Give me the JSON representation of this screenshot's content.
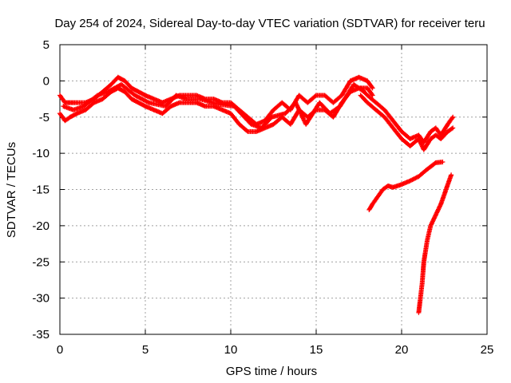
{
  "chart_data": {
    "type": "scatter",
    "title": "Day 254 of 2024, Sidereal Day-to-day VTEC variation (SDTVAR) for receiver teru",
    "xlabel": "GPS time / hours",
    "ylabel": "SDTVAR / TECUs",
    "xlim": [
      0,
      25
    ],
    "ylim": [
      -35,
      5
    ],
    "xticks": [
      0,
      5,
      10,
      15,
      20,
      25
    ],
    "yticks": [
      5,
      0,
      -5,
      -10,
      -15,
      -20,
      -25,
      -30,
      -35
    ],
    "grid": true,
    "marker": "+",
    "marker_color": "#ff0000",
    "series": [
      {
        "name": "main-trace-upper",
        "x": [
          0,
          0.3,
          0.6,
          1,
          1.5,
          2,
          2.5,
          3,
          3.4,
          3.8,
          4.2,
          4.6,
          5,
          5.5,
          6,
          6.5,
          7,
          7.5,
          8,
          8.5,
          9,
          9.5,
          10,
          10.5,
          11,
          11.5,
          12,
          12.5,
          13,
          13.5,
          14,
          14.5,
          15,
          15.5,
          16,
          16.5,
          17,
          17.5,
          18,
          18.3
        ],
        "y": [
          -2,
          -3,
          -3,
          -3,
          -3,
          -2.5,
          -1.5,
          -0.5,
          0.5,
          0,
          -1,
          -1.5,
          -2,
          -2.5,
          -3,
          -2.5,
          -2,
          -2,
          -2,
          -2.5,
          -2.5,
          -3,
          -3,
          -4,
          -5,
          -6,
          -5.5,
          -4,
          -3,
          -4,
          -2,
          -3,
          -2,
          -2,
          -3,
          -2,
          0,
          0.5,
          0,
          -1
        ]
      },
      {
        "name": "main-trace-lower",
        "x": [
          0,
          0.3,
          0.6,
          1,
          1.5,
          2,
          2.5,
          3,
          3.4,
          3.8,
          4.2,
          4.6,
          5,
          5.5,
          6,
          6.5,
          7,
          7.5,
          8,
          8.5,
          9,
          9.5,
          10,
          10.5,
          11,
          11.5,
          12,
          12.5,
          13,
          13.5,
          14,
          14.5,
          15,
          15.5,
          16,
          16.5,
          17,
          17.5,
          18,
          18.3
        ],
        "y": [
          -4.5,
          -5.5,
          -5,
          -4.5,
          -4,
          -3,
          -2.5,
          -1.5,
          -1,
          -1.5,
          -2.5,
          -3,
          -3.5,
          -4,
          -4.5,
          -3.5,
          -3,
          -3,
          -3,
          -3.5,
          -3.5,
          -4,
          -4.5,
          -6,
          -7,
          -7,
          -6.5,
          -6,
          -5,
          -6,
          -4,
          -5,
          -4,
          -4,
          -5,
          -3,
          -1.5,
          -1,
          -1,
          -2
        ]
      },
      {
        "name": "spread-trace",
        "x": [
          0.2,
          0.8,
          1.4,
          2.2,
          2.8,
          3.6,
          4.4,
          5.2,
          6.2,
          6.8,
          7.4,
          8.2,
          9.2,
          10.2,
          11.2,
          11.8,
          12.4,
          13.2,
          13.8,
          14.4,
          15.2,
          15.8,
          16.4,
          17.2,
          17.8
        ],
        "y": [
          -3.5,
          -4,
          -3.5,
          -2,
          -1.5,
          -0.5,
          -2,
          -3,
          -3.5,
          -2,
          -2.5,
          -2.5,
          -3.2,
          -3.5,
          -6,
          -6.5,
          -5,
          -4.5,
          -3,
          -6,
          -3,
          -4.5,
          -3.5,
          -0.5,
          -1.5
        ]
      },
      {
        "name": "late-descent",
        "x": [
          17.6,
          18,
          18.5,
          19,
          19.5,
          20,
          20.5,
          21,
          21.3,
          21.7,
          22,
          22.3,
          22.7,
          23
        ],
        "y": [
          -1,
          -2,
          -3,
          -4,
          -5.5,
          -7,
          -8,
          -7.5,
          -8.5,
          -7,
          -6.5,
          -7.5,
          -6,
          -5
        ]
      },
      {
        "name": "late-descent-lower",
        "x": [
          17.6,
          18,
          18.5,
          19,
          19.5,
          20,
          20.5,
          21,
          21.3,
          21.7,
          22,
          22.3,
          22.7,
          23
        ],
        "y": [
          -2,
          -3,
          -4,
          -5,
          -6.5,
          -8,
          -9,
          -8,
          -9.5,
          -8,
          -7.5,
          -8,
          -7,
          -6.5
        ]
      },
      {
        "name": "middle-branch",
        "x": [
          18.1,
          18.3,
          18.6,
          18.9,
          19.2,
          19.5,
          20,
          20.5,
          21,
          21.5,
          22,
          22.4
        ],
        "y": [
          -17.8,
          -17,
          -16,
          -15,
          -14.5,
          -14.7,
          -14.3,
          -13.8,
          -13.2,
          -12.2,
          -11.3,
          -11.2
        ]
      },
      {
        "name": "steep-branch",
        "x": [
          21,
          21.1,
          21.2,
          21.3,
          21.5,
          21.7,
          22,
          22.3,
          22.6,
          22.9
        ],
        "y": [
          -32,
          -30,
          -28,
          -25,
          -22,
          -20,
          -18.5,
          -17,
          -15,
          -13
        ]
      }
    ]
  }
}
